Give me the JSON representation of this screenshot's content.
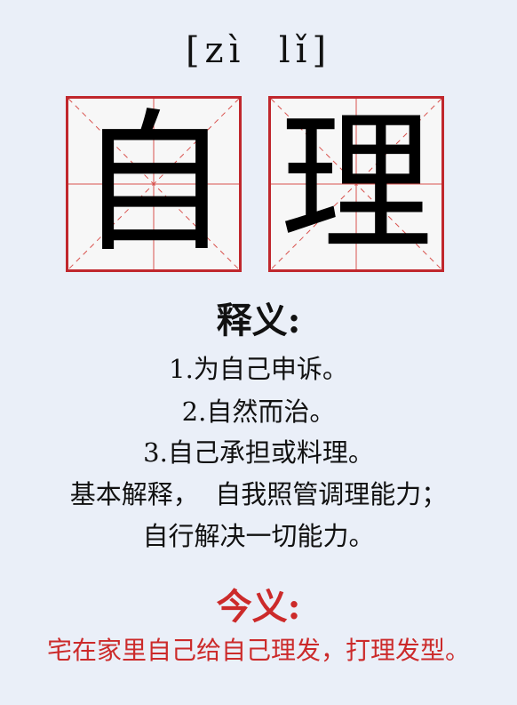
{
  "pinyin": "[zì  lǐ]",
  "characters": [
    "自",
    "理"
  ],
  "definitions": {
    "heading": "释义:",
    "lines": [
      "1.为自己申诉。",
      "2.自然而治。",
      "3.自己承担或料理。",
      "基本解释，  自我照管调理能力；",
      "自行解决一切能力。"
    ]
  },
  "modern": {
    "heading": "今义:",
    "text": "宅在家里自己给自己理发，打理发型。"
  },
  "colors": {
    "background": "#eaeff8",
    "grid_border": "#c0272d",
    "modern_red": "#cc2a2a"
  }
}
